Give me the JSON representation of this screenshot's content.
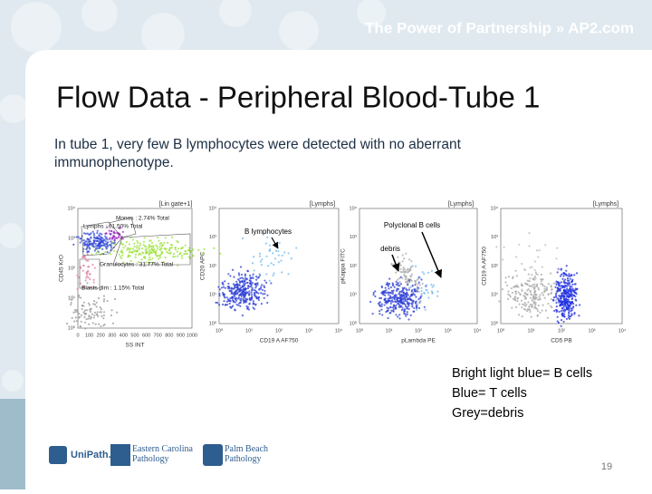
{
  "header": {
    "tagline": "The Power of Partnership » AP2.com"
  },
  "title": "Flow Data - Peripheral Blood-Tube 1",
  "body": "In tube 1, very few B lymphocytes were detected with no aberrant immunophenotype.",
  "plots": [
    {
      "gate": "[Lin gate+1]",
      "labels": [
        "Monos : 2.74% Total",
        "Lymphs : 61.50% Total",
        "Granulocytes : 31.77% Total",
        "Blasts dim : 1.15% Total"
      ],
      "x_axis": "SS INT",
      "y_axis": "CD45 KrO",
      "xticks": [
        "0",
        "100",
        "200",
        "300",
        "400",
        "500",
        "600",
        "700",
        "800",
        "900",
        "1000"
      ],
      "yticks": [
        "10⁴",
        "10³",
        "10²",
        "10¹",
        "10⁰"
      ]
    },
    {
      "gate": "[Lymphs]",
      "labels": [
        "B lymphocytes"
      ],
      "x_axis": "CD19 A AF750",
      "y_axis": "CD20 APC",
      "xticks": [
        "10⁰",
        "10¹",
        "10²",
        "10³",
        "10⁴"
      ],
      "yticks": [
        "10⁴",
        "10³",
        "10²",
        "10¹",
        "10⁰"
      ]
    },
    {
      "gate": "[Lymphs]",
      "labels": [
        "Polyclonal B cells",
        "debris"
      ],
      "x_axis": "pLambda PE",
      "y_axis": "pKappa FITC",
      "xticks": [
        "10⁰",
        "10¹",
        "10²",
        "10³",
        "10⁴"
      ],
      "yticks": [
        "10⁴",
        "10³",
        "10²",
        "10¹",
        "10⁰"
      ]
    },
    {
      "gate": "[Lymphs]",
      "labels": [],
      "x_axis": "CD5 PB",
      "y_axis": "CD19 A AF750",
      "xticks": [
        "10⁰",
        "10¹",
        "10²",
        "10³",
        "10⁴"
      ],
      "yticks": [
        "10⁴",
        "10³",
        "10²",
        "10¹",
        "10⁰"
      ]
    }
  ],
  "legend": [
    "Bright light blue= B cells",
    "Blue= T cells",
    "Grey=debris"
  ],
  "footer": {
    "logos": [
      "UniPath.",
      "Eastern Carolina Pathology",
      "Palm Beach Pathology"
    ],
    "page": "19"
  }
}
